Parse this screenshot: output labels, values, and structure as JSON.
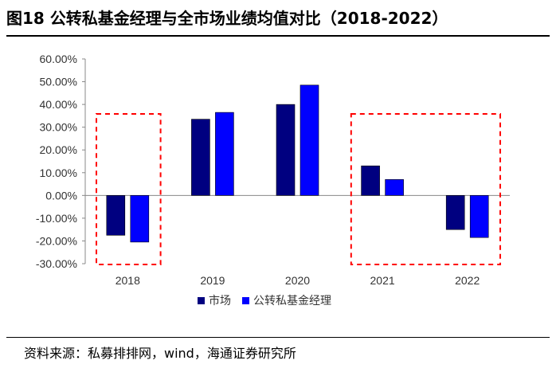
{
  "title": "图18 公转私基金经理与全市场业绩均值对比（2018-2022）",
  "source": "资料来源：私募排排网，wind，海通证券研究所",
  "chart_data": {
    "type": "bar",
    "categories": [
      "2018",
      "2019",
      "2020",
      "2021",
      "2022"
    ],
    "series": [
      {
        "name": "市场",
        "color": "#000080",
        "values": [
          -17.5,
          33.5,
          40.0,
          13.0,
          -15.0
        ]
      },
      {
        "name": "公转私基金经理",
        "color": "#0000FF",
        "values": [
          -20.5,
          36.5,
          48.5,
          7.0,
          -18.5
        ]
      }
    ],
    "ylim": [
      -30,
      60
    ],
    "yticks": [
      "60.00%",
      "50.00%",
      "40.00%",
      "30.00%",
      "20.00%",
      "10.00%",
      "0.00%",
      "-10.00%",
      "-20.00%",
      "-30.00%"
    ],
    "highlighted_categories": [
      [
        "2018"
      ],
      [
        "2021",
        "2022"
      ]
    ],
    "highlight_color": "#FF0000",
    "legend_position": "bottom",
    "grid": false
  }
}
